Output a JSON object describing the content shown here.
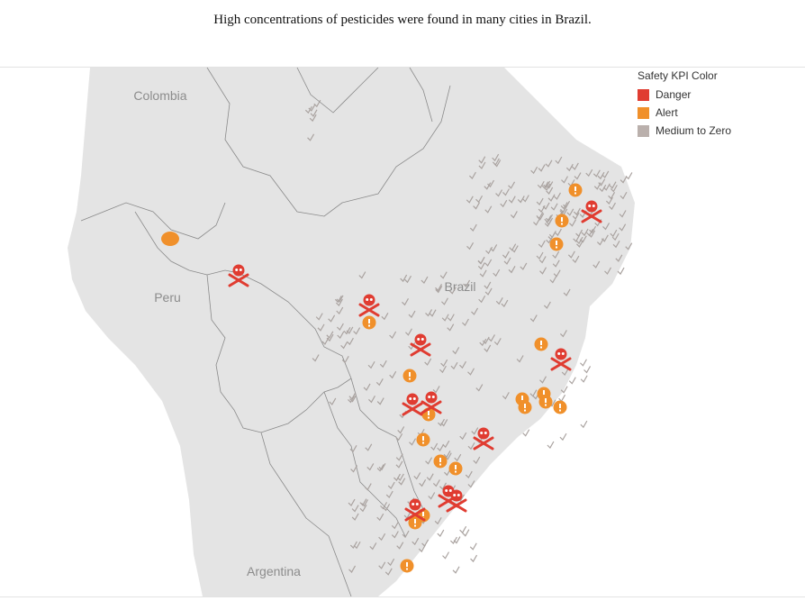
{
  "title": "High concentrations of pesticides were found in many cities in Brazil.",
  "legend": {
    "title": "Safety KPI Color",
    "items": [
      {
        "label": "Danger",
        "color": "#e03c31"
      },
      {
        "label": "Alert",
        "color": "#f0902b"
      },
      {
        "label": "Medium to Zero",
        "color": "#bab0ac"
      }
    ]
  },
  "map": {
    "country_labels": [
      "Colombia",
      "Peru",
      "Brazil",
      "Argentina"
    ],
    "colors": {
      "land": "#e4e4e4",
      "border": "#8a8a8a",
      "check": "#aaa3a0"
    },
    "icons": {
      "danger": "skull-crossbones-icon",
      "alert": "exclamation-circle-icon",
      "medium": "checkmark-icon"
    }
  }
}
